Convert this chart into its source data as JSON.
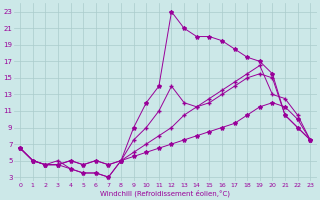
{
  "xlabel": "Windchill (Refroidissement éolien,°C)",
  "background_color": "#cce8e8",
  "grid_color": "#aacccc",
  "line_color": "#990099",
  "xlim": [
    -0.5,
    23.5
  ],
  "ylim": [
    2.5,
    24
  ],
  "xticks": [
    0,
    1,
    2,
    3,
    4,
    5,
    6,
    7,
    8,
    9,
    10,
    11,
    12,
    13,
    14,
    15,
    16,
    17,
    18,
    19,
    20,
    21,
    22,
    23
  ],
  "yticks": [
    3,
    5,
    7,
    9,
    11,
    13,
    15,
    17,
    19,
    21,
    23
  ],
  "line1_x": [
    0,
    1,
    2,
    3,
    4,
    5,
    6,
    7,
    8,
    9,
    10,
    11,
    12,
    13,
    14,
    15,
    16,
    17,
    18,
    19,
    20,
    21,
    22,
    23
  ],
  "line1_y": [
    6.5,
    5,
    4.5,
    4.5,
    5,
    4.5,
    5,
    4.5,
    5,
    5.5,
    6,
    6.5,
    7,
    7.5,
    8,
    8.5,
    9,
    9.5,
    10.5,
    11.5,
    12,
    11.5,
    10,
    7.5
  ],
  "line2_x": [
    0,
    1,
    2,
    3,
    4,
    5,
    6,
    7,
    8,
    9,
    10,
    11,
    12,
    13,
    14,
    15,
    16,
    17,
    18,
    19,
    20,
    21,
    22,
    23
  ],
  "line2_y": [
    6.5,
    5,
    4.5,
    4.5,
    5,
    4.5,
    5,
    4.5,
    5,
    6,
    7,
    8,
    9,
    10.5,
    11.5,
    12.5,
    13.5,
    14.5,
    15.5,
    16.5,
    13,
    12.5,
    10.5,
    7.5
  ],
  "line3_x": [
    0,
    1,
    2,
    3,
    4,
    5,
    6,
    7,
    8,
    9,
    10,
    11,
    12,
    13,
    14,
    15,
    16,
    17,
    18,
    19,
    20,
    21,
    22,
    23
  ],
  "line3_y": [
    6.5,
    5,
    4.5,
    5,
    4,
    3.5,
    3.5,
    3,
    5,
    7.5,
    9,
    11,
    14,
    12,
    11.5,
    12,
    13,
    14,
    15,
    15.5,
    15,
    10.5,
    9,
    7.5
  ],
  "line4_x": [
    0,
    1,
    2,
    3,
    4,
    5,
    6,
    7,
    8,
    9,
    10,
    11,
    12,
    13,
    14,
    15,
    16,
    17,
    18,
    19,
    20,
    21,
    22,
    23
  ],
  "line4_y": [
    6.5,
    5,
    4.5,
    4.5,
    4,
    3.5,
    3.5,
    3,
    5,
    9,
    12,
    14,
    23,
    21,
    20,
    20,
    19.5,
    18.5,
    17.5,
    17,
    15.5,
    10.5,
    9,
    7.5
  ]
}
